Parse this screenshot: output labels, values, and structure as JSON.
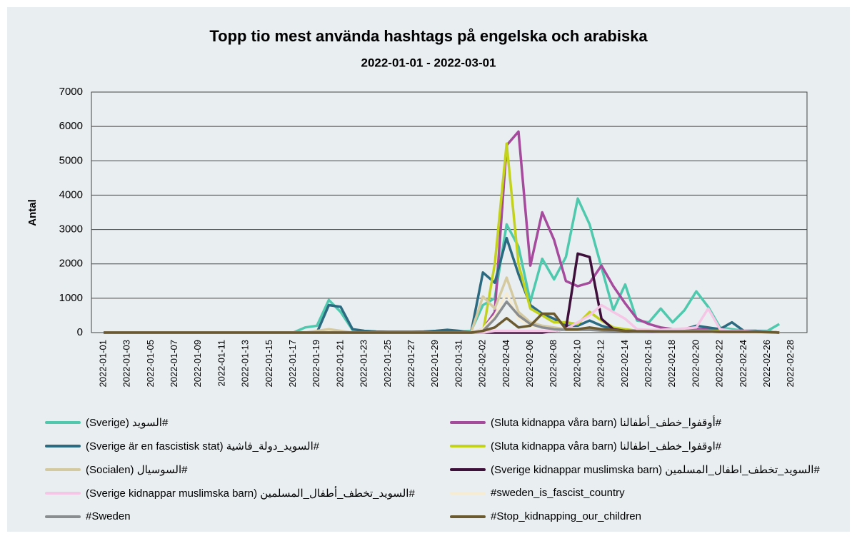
{
  "chart_data": {
    "type": "line",
    "title": "Topp tio mest använda hashtags på engelska och arabiska",
    "subtitle": "2022-01-01 - 2022-03-01",
    "y_label": "Antal",
    "categories": [
      "2022-01-01",
      null,
      "2022-01-03",
      null,
      "2022-01-05",
      null,
      "2022-01-07",
      null,
      "2022-01-09",
      null,
      "2022-01-11",
      null,
      "2022-01-13",
      null,
      "2022-01-15",
      null,
      "2022-01-17",
      null,
      "2022-01-19",
      null,
      "2022-01-21",
      null,
      "2022-01-23",
      null,
      "2022-01-25",
      null,
      "2022-01-27",
      null,
      "2022-01-29",
      null,
      "2022-01-31",
      null,
      "2022-02-02",
      null,
      "2022-02-04",
      null,
      "2022-02-06",
      null,
      "2022-02-08",
      null,
      "2022-02-10",
      null,
      "2022-02-12",
      null,
      "2022-02-14",
      null,
      "2022-02-16",
      null,
      "2022-02-18",
      null,
      "2022-02-20",
      null,
      "2022-02-22",
      null,
      "2022-02-24",
      null,
      "2022-02-26",
      null,
      "2022-02-28"
    ],
    "ylim": [
      0,
      7000
    ],
    "yticks": [
      0,
      1000,
      2000,
      3000,
      4000,
      5000,
      6000,
      7000
    ],
    "grid": true,
    "series": [
      {
        "name": "#السويد (Sverige)",
        "color": "#4fc9ae",
        "values": [
          0,
          0,
          0,
          0,
          0,
          0,
          0,
          0,
          0,
          0,
          0,
          0,
          0,
          0,
          0,
          0,
          0,
          150,
          200,
          950,
          600,
          80,
          50,
          30,
          20,
          20,
          20,
          20,
          20,
          30,
          20,
          50,
          800,
          1000,
          3150,
          2500,
          900,
          2150,
          1550,
          2200,
          3900,
          3150,
          1900,
          650,
          1400,
          350,
          300,
          700,
          300,
          650,
          1200,
          750,
          150,
          100,
          50,
          50,
          50,
          250,
          null
        ]
      },
      {
        "name": "#أوقفوا_خطف_أطفالنا (Sluta kidnappa våra barn)",
        "color": "#a54a9c",
        "values": [
          0,
          0,
          0,
          0,
          0,
          0,
          0,
          0,
          0,
          0,
          0,
          0,
          0,
          0,
          0,
          0,
          0,
          0,
          0,
          0,
          0,
          0,
          0,
          0,
          0,
          0,
          0,
          0,
          0,
          0,
          0,
          0,
          100,
          600,
          5450,
          5850,
          1950,
          3500,
          2700,
          1500,
          1350,
          1450,
          1950,
          1350,
          850,
          400,
          250,
          150,
          100,
          100,
          100,
          100,
          50,
          50,
          50,
          50,
          30,
          0,
          null
        ]
      },
      {
        "name": "#السويد_دولة_فاشية (Sverige är en fascistisk stat)",
        "color": "#2b6a80",
        "values": [
          0,
          0,
          0,
          0,
          0,
          0,
          0,
          0,
          0,
          0,
          0,
          0,
          0,
          0,
          0,
          0,
          0,
          0,
          0,
          800,
          750,
          100,
          50,
          30,
          20,
          20,
          20,
          30,
          50,
          80,
          50,
          0,
          1750,
          1450,
          2750,
          1700,
          800,
          550,
          400,
          200,
          200,
          350,
          200,
          100,
          50,
          50,
          50,
          50,
          50,
          100,
          200,
          150,
          100,
          300,
          50,
          50,
          30,
          0,
          null
        ]
      },
      {
        "name": "#اوقفوا_خطف_اطفالنا (Sluta kidnappa våra barn)",
        "color": "#c3d21c",
        "values": [
          0,
          0,
          0,
          0,
          0,
          0,
          0,
          0,
          0,
          0,
          0,
          0,
          0,
          0,
          0,
          0,
          0,
          0,
          0,
          0,
          0,
          0,
          0,
          0,
          0,
          0,
          0,
          0,
          0,
          0,
          0,
          0,
          0,
          2000,
          5500,
          2000,
          700,
          500,
          300,
          300,
          250,
          600,
          350,
          150,
          100,
          50,
          50,
          50,
          50,
          50,
          50,
          50,
          50,
          30,
          30,
          30,
          20,
          0,
          null
        ]
      },
      {
        "name": "#السوسيال (Socialen)",
        "color": "#d5c9a0",
        "values": [
          0,
          0,
          0,
          0,
          0,
          0,
          0,
          0,
          0,
          0,
          0,
          0,
          0,
          0,
          0,
          0,
          0,
          0,
          50,
          100,
          50,
          0,
          0,
          0,
          0,
          0,
          0,
          0,
          0,
          0,
          0,
          0,
          1050,
          700,
          1600,
          600,
          300,
          200,
          150,
          100,
          100,
          100,
          80,
          60,
          50,
          50,
          50,
          50,
          50,
          50,
          50,
          50,
          30,
          30,
          30,
          20,
          20,
          0,
          null
        ]
      },
      {
        "name": "#السويد_تخطف_اطفال_المسلمين (Sverige kidnappar muslimska barn)",
        "color": "#3d0f3a",
        "values": [
          0,
          0,
          0,
          0,
          0,
          0,
          0,
          0,
          0,
          0,
          0,
          0,
          0,
          0,
          0,
          0,
          0,
          0,
          0,
          0,
          0,
          0,
          0,
          0,
          0,
          0,
          0,
          0,
          0,
          0,
          0,
          0,
          0,
          0,
          0,
          0,
          0,
          0,
          50,
          100,
          2300,
          2200,
          400,
          100,
          50,
          50,
          30,
          30,
          30,
          30,
          30,
          30,
          20,
          20,
          20,
          20,
          20,
          0,
          null
        ]
      },
      {
        "name": "#السويد_تخطف_أطفال_المسلمين (Sverige kidnappar muslimska barn)",
        "color": "#f6c6e6",
        "values": [
          0,
          0,
          0,
          0,
          0,
          0,
          0,
          0,
          0,
          0,
          0,
          0,
          0,
          0,
          0,
          0,
          0,
          0,
          0,
          0,
          0,
          0,
          0,
          0,
          0,
          0,
          0,
          0,
          0,
          0,
          0,
          0,
          0,
          50,
          50,
          50,
          50,
          50,
          50,
          100,
          300,
          500,
          800,
          600,
          400,
          100,
          80,
          80,
          100,
          120,
          150,
          700,
          100,
          50,
          50,
          30,
          30,
          0,
          null
        ]
      },
      {
        "name": "#sweden_is_fascist_country",
        "color": "#f6ecd4",
        "values": [
          0,
          0,
          0,
          0,
          0,
          0,
          0,
          0,
          0,
          0,
          0,
          0,
          0,
          0,
          0,
          0,
          0,
          0,
          0,
          0,
          0,
          0,
          0,
          0,
          0,
          0,
          0,
          0,
          0,
          0,
          0,
          0,
          100,
          500,
          1150,
          400,
          200,
          150,
          100,
          80,
          80,
          80,
          60,
          50,
          50,
          40,
          40,
          40,
          40,
          40,
          40,
          40,
          30,
          30,
          30,
          20,
          20,
          0,
          null
        ]
      },
      {
        "name": "#Sweden",
        "color": "#8a8d8f",
        "values": [
          0,
          0,
          0,
          0,
          0,
          0,
          0,
          0,
          0,
          0,
          0,
          0,
          0,
          0,
          0,
          0,
          0,
          0,
          0,
          0,
          0,
          0,
          0,
          0,
          0,
          0,
          0,
          0,
          0,
          0,
          0,
          0,
          50,
          400,
          900,
          500,
          250,
          150,
          100,
          80,
          80,
          80,
          60,
          50,
          50,
          40,
          40,
          40,
          40,
          40,
          40,
          40,
          30,
          30,
          30,
          20,
          20,
          0,
          null
        ]
      },
      {
        "name": "#Stop_kidnapping_our_children",
        "color": "#6b5a30",
        "values": [
          0,
          0,
          0,
          0,
          0,
          0,
          0,
          0,
          0,
          0,
          0,
          0,
          0,
          0,
          0,
          0,
          0,
          0,
          0,
          0,
          0,
          0,
          0,
          0,
          0,
          0,
          0,
          0,
          0,
          0,
          0,
          0,
          50,
          150,
          420,
          150,
          200,
          550,
          550,
          100,
          100,
          150,
          100,
          80,
          50,
          40,
          40,
          30,
          30,
          30,
          30,
          30,
          20,
          20,
          20,
          20,
          10,
          0,
          null
        ]
      }
    ]
  }
}
